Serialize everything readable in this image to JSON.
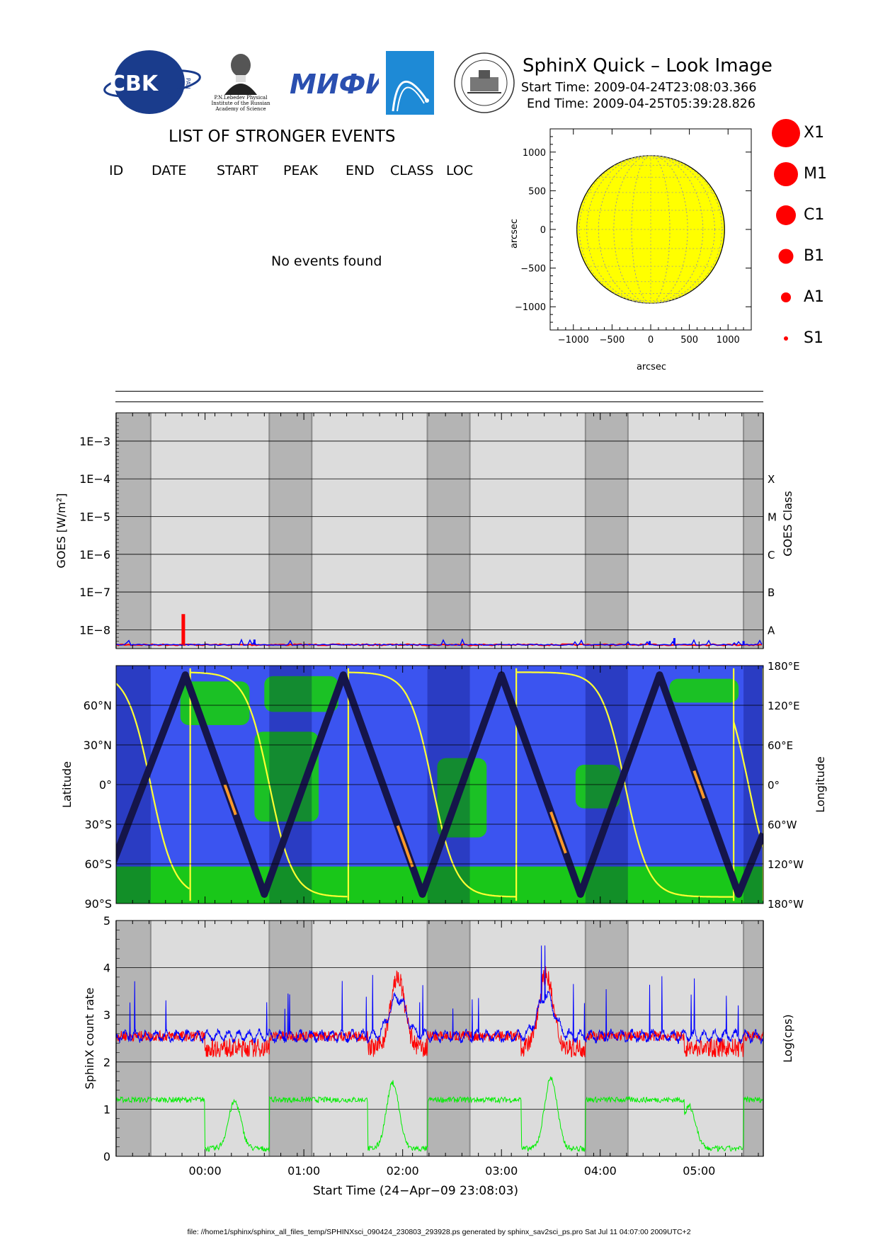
{
  "header": {
    "title": "SphinX Quick – Look Image",
    "start_time": "Start Time: 2009-04-24T23:08:03.366",
    "end_time": "End Time: 2009-04-25T05:39:28.826"
  },
  "logos": {
    "cbk": "CBK",
    "cbk_side": "PAN",
    "lebedev_lines": [
      "P.N.Lebedev Physical",
      "Institute of the Russian",
      "Academy of Science"
    ],
    "mifi": "МИФИ"
  },
  "events": {
    "title": "LIST OF STRONGER EVENTS",
    "columns": [
      "ID",
      "DATE",
      "START",
      "PEAK",
      "END",
      "CLASS",
      "LOC"
    ],
    "empty_message": "No events found"
  },
  "legend": {
    "items": [
      "X1",
      "M1",
      "C1",
      "B1",
      "A1",
      "S1"
    ],
    "color": "#ff0000"
  },
  "footer": "file: //home1/sphinx/sphinx_all_files_temp/SPHINXsci_090424_230803_293928.ps generated by sphinx_sav2sci_ps.pro Sat Jul 11 04:07:00 2009UTC+2",
  "chart_data": [
    {
      "type": "scatter",
      "name": "solar-disk",
      "xlabel": "arcsec",
      "ylabel": "arcsec",
      "xlim": [
        -1300,
        1300
      ],
      "ylim": [
        -1300,
        1300
      ],
      "xticks": [
        "−1000",
        "−500",
        "0",
        "500",
        "1000"
      ],
      "yticks": [
        "1000",
        "500",
        "0",
        "−500",
        "−1000"
      ],
      "disk_radius": 955,
      "disk_color": "#ffff00",
      "points": []
    },
    {
      "type": "line",
      "name": "goes",
      "ylabel": "GOES [W/m²]",
      "y2label": "GOES Class",
      "log_scale": true,
      "yticks": [
        "1E−3",
        "1E−4",
        "1E−5",
        "1E−6",
        "1E−7",
        "1E−8"
      ],
      "class_ticks": [
        "X",
        "M",
        "C",
        "B",
        "A"
      ],
      "series": [
        {
          "label": "",
          "color": "#ff0000",
          "baseline": 4e-09,
          "spike": {
            "t": -0.22,
            "value": 2.6e-08
          }
        },
        {
          "label": "",
          "color": "#0000ff",
          "baseline": 4e-09,
          "spikes": [
            {
              "t": 0.5,
              "value": 5.5e-09
            },
            {
              "t": 4.5,
              "value": 5e-09
            },
            {
              "t": 4.75,
              "value": 6e-09
            },
            {
              "t": 5.45,
              "value": 5e-09
            }
          ]
        }
      ]
    },
    {
      "type": "line",
      "name": "orbit",
      "ylabel": "Latitude",
      "y2label": "Longitude",
      "lat_ticks": [
        "60°N",
        "30°N",
        "0°",
        "30°S",
        "60°S",
        "90°S"
      ],
      "lon_ticks": [
        "180°E",
        "120°E",
        "60°E",
        "0°",
        "60°W",
        "120°W",
        "180°W"
      ],
      "track_color": "#15154a",
      "longitude_color": "#ffff33",
      "latitude_track": [
        [
          -0.95,
          -63
        ],
        [
          -0.2,
          83
        ],
        [
          0.6,
          -83
        ],
        [
          1.4,
          83
        ],
        [
          2.2,
          -83
        ],
        [
          3.0,
          83
        ],
        [
          3.8,
          -83
        ],
        [
          4.6,
          83
        ],
        [
          5.4,
          -83
        ],
        [
          5.65,
          -37
        ]
      ]
    },
    {
      "type": "line",
      "name": "count-rate",
      "ylabel": "SphinX count rate",
      "y2label": "Log(cps)",
      "ylim": [
        0,
        5
      ],
      "yticks": [
        "5",
        "4",
        "3",
        "2",
        "1",
        "0"
      ],
      "series": [
        {
          "label": "",
          "color": "#ff0000"
        },
        {
          "label": "",
          "color": "#0000ff"
        },
        {
          "label": "",
          "color": "#00ee00"
        }
      ]
    }
  ],
  "time_axis": {
    "xlabel": "Start Time (24−Apr−09 23:08:03)",
    "ticks": [
      "00:00",
      "01:00",
      "02:00",
      "03:00",
      "04:00",
      "05:00"
    ],
    "tick_hours": [
      0,
      1,
      2,
      3,
      4,
      5
    ],
    "range_hours": [
      -0.9,
      5.65
    ],
    "eclipses": [
      [
        -0.9,
        -0.55
      ],
      [
        0.65,
        1.08
      ],
      [
        2.25,
        2.68
      ],
      [
        3.85,
        4.28
      ],
      [
        5.45,
        5.65
      ]
    ]
  }
}
